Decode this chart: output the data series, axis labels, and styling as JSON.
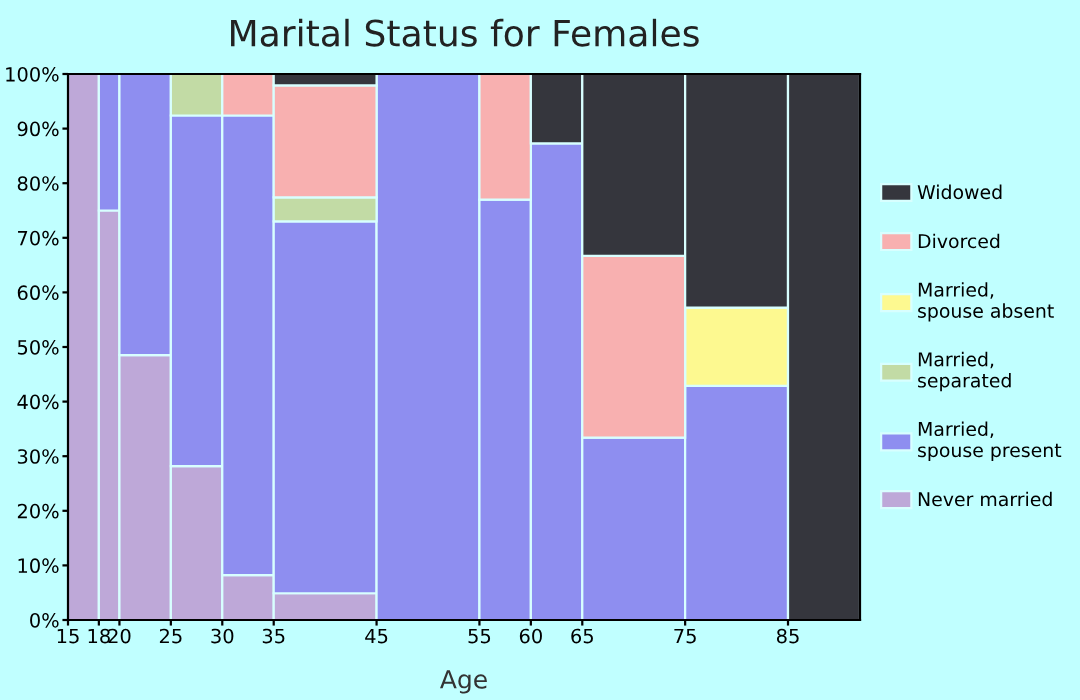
{
  "chart_data": {
    "type": "bar",
    "stacked": true,
    "title": "Marital Status for Females",
    "xlabel": "Age",
    "x": [
      16.5,
      19,
      22.5,
      27.5,
      32.5,
      40,
      50,
      57.5,
      62.5,
      70,
      80,
      88.5
    ],
    "xlim": [
      15,
      92
    ],
    "xticks": [
      15,
      18,
      20,
      25,
      30,
      35,
      45,
      55,
      60,
      65,
      75,
      85
    ],
    "ylim": [
      0,
      100
    ],
    "yticks": [
      {
        "value": 0,
        "label": "0%"
      },
      {
        "value": 10,
        "label": "10%"
      },
      {
        "value": 20,
        "label": "20%"
      },
      {
        "value": 30,
        "label": "30%"
      },
      {
        "value": 40,
        "label": "40%"
      },
      {
        "value": 50,
        "label": "50%"
      },
      {
        "value": 60,
        "label": "60%"
      },
      {
        "value": 70,
        "label": "70%"
      },
      {
        "value": 80,
        "label": "80%"
      },
      {
        "value": 90,
        "label": "90%"
      },
      {
        "value": 100,
        "label": "100%"
      }
    ],
    "grid": false,
    "legend": "right",
    "series": [
      {
        "name": "Never married",
        "color": "#bea8d8",
        "values": [
          100,
          75,
          48.5,
          28.2,
          8.2,
          4.9,
          0,
          0,
          0,
          0,
          0,
          0
        ]
      },
      {
        "name": "Married,\nspouse present",
        "color": "#8e8ef0",
        "values": [
          0,
          25,
          51.5,
          64.2,
          84.2,
          68.1,
          100,
          77,
          87.3,
          33.4,
          42.9,
          0
        ]
      },
      {
        "name": "Married,\nseparated",
        "color": "#c2dba5",
        "values": [
          0,
          0,
          0,
          7.6,
          0,
          4.4,
          0,
          0,
          0,
          0,
          0,
          0
        ]
      },
      {
        "name": "Married,\nspouse absent",
        "color": "#fdf990",
        "values": [
          0,
          0,
          0,
          0,
          0,
          0,
          0,
          0,
          0,
          0,
          14.3,
          0
        ]
      },
      {
        "name": "Divorced",
        "color": "#f8b0b0",
        "values": [
          0,
          0,
          0,
          0,
          7.6,
          20.5,
          0,
          23,
          0,
          33.3,
          0,
          0
        ]
      },
      {
        "name": "Widowed",
        "color": "#35363d",
        "values": [
          0,
          0,
          0,
          0,
          0,
          2.1,
          0,
          0,
          12.7,
          33.3,
          42.8,
          100
        ]
      }
    ]
  }
}
